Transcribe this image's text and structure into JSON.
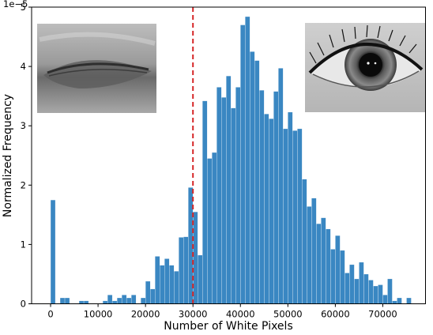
{
  "chart_data": {
    "type": "bar",
    "xlabel": "Number of White Pixels",
    "ylabel": "Normalized Frequency",
    "y_offset_label": "1e−5",
    "xlim": [
      -4000,
      79000
    ],
    "ylim": [
      0,
      5
    ],
    "x_ticks": [
      0,
      10000,
      20000,
      30000,
      40000,
      50000,
      60000,
      70000
    ],
    "x_tick_labels": [
      "0",
      "10000",
      "20000",
      "30000",
      "40000",
      "50000",
      "60000",
      "70000"
    ],
    "y_ticks": [
      0,
      1,
      2,
      3,
      4,
      5
    ],
    "y_tick_labels": [
      "0",
      "1",
      "2",
      "3",
      "4",
      "5"
    ],
    "bin_width": 1000,
    "bins": [
      {
        "x": 0,
        "y": 1.75
      },
      {
        "x": 2000,
        "y": 0.1
      },
      {
        "x": 3000,
        "y": 0.1
      },
      {
        "x": 6000,
        "y": 0.05
      },
      {
        "x": 7000,
        "y": 0.05
      },
      {
        "x": 11000,
        "y": 0.05
      },
      {
        "x": 12000,
        "y": 0.15
      },
      {
        "x": 13000,
        "y": 0.05
      },
      {
        "x": 14000,
        "y": 0.1
      },
      {
        "x": 15000,
        "y": 0.15
      },
      {
        "x": 16000,
        "y": 0.1
      },
      {
        "x": 17000,
        "y": 0.15
      },
      {
        "x": 19000,
        "y": 0.1
      },
      {
        "x": 20000,
        "y": 0.38
      },
      {
        "x": 21000,
        "y": 0.25
      },
      {
        "x": 22000,
        "y": 0.8
      },
      {
        "x": 23000,
        "y": 0.65
      },
      {
        "x": 24000,
        "y": 0.76
      },
      {
        "x": 25000,
        "y": 0.65
      },
      {
        "x": 26000,
        "y": 0.55
      },
      {
        "x": 27000,
        "y": 1.12
      },
      {
        "x": 28000,
        "y": 1.13
      },
      {
        "x": 29000,
        "y": 1.96
      },
      {
        "x": 30000,
        "y": 1.55
      },
      {
        "x": 31000,
        "y": 0.82
      },
      {
        "x": 32000,
        "y": 3.42
      },
      {
        "x": 33000,
        "y": 2.45
      },
      {
        "x": 34000,
        "y": 2.55
      },
      {
        "x": 35000,
        "y": 3.65
      },
      {
        "x": 36000,
        "y": 3.48
      },
      {
        "x": 37000,
        "y": 3.84
      },
      {
        "x": 38000,
        "y": 3.3
      },
      {
        "x": 39000,
        "y": 3.65
      },
      {
        "x": 40000,
        "y": 4.7
      },
      {
        "x": 41000,
        "y": 4.84
      },
      {
        "x": 42000,
        "y": 4.25
      },
      {
        "x": 43000,
        "y": 4.1
      },
      {
        "x": 44000,
        "y": 3.6
      },
      {
        "x": 45000,
        "y": 3.2
      },
      {
        "x": 46000,
        "y": 3.12
      },
      {
        "x": 47000,
        "y": 3.58
      },
      {
        "x": 48000,
        "y": 3.97
      },
      {
        "x": 49000,
        "y": 2.95
      },
      {
        "x": 50000,
        "y": 3.23
      },
      {
        "x": 51000,
        "y": 2.92
      },
      {
        "x": 52000,
        "y": 2.95
      },
      {
        "x": 53000,
        "y": 2.1
      },
      {
        "x": 54000,
        "y": 1.64
      },
      {
        "x": 55000,
        "y": 1.78
      },
      {
        "x": 56000,
        "y": 1.35
      },
      {
        "x": 57000,
        "y": 1.45
      },
      {
        "x": 58000,
        "y": 1.26
      },
      {
        "x": 59000,
        "y": 0.92
      },
      {
        "x": 60000,
        "y": 1.15
      },
      {
        "x": 61000,
        "y": 0.9
      },
      {
        "x": 62000,
        "y": 0.52
      },
      {
        "x": 63000,
        "y": 0.66
      },
      {
        "x": 64000,
        "y": 0.42
      },
      {
        "x": 65000,
        "y": 0.7
      },
      {
        "x": 66000,
        "y": 0.5
      },
      {
        "x": 67000,
        "y": 0.4
      },
      {
        "x": 68000,
        "y": 0.3
      },
      {
        "x": 69000,
        "y": 0.32
      },
      {
        "x": 70000,
        "y": 0.15
      },
      {
        "x": 71000,
        "y": 0.42
      },
      {
        "x": 72000,
        "y": 0.05
      },
      {
        "x": 73000,
        "y": 0.1
      },
      {
        "x": 75000,
        "y": 0.1
      }
    ],
    "threshold_line": {
      "x": 30000,
      "color": "#d62728",
      "style": "dashed"
    },
    "bar_color": "#3a87c2",
    "grid": false,
    "legend": "none",
    "insets": [
      {
        "position": "top-left",
        "content": "closed-eye-photo"
      },
      {
        "position": "top-right",
        "content": "open-eye-photo"
      }
    ]
  }
}
